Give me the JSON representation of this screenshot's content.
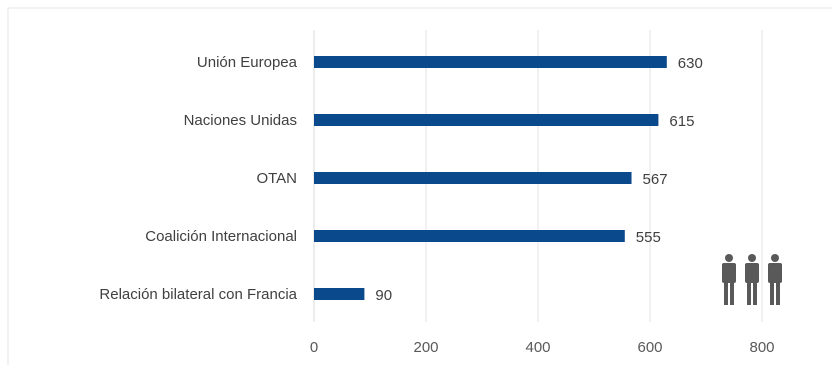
{
  "chart_data": {
    "type": "bar",
    "orientation": "horizontal",
    "categories": [
      "Unión Europea",
      "Naciones Unidas",
      "OTAN",
      "Coalición Internacional",
      "Relación bilateral con Francia"
    ],
    "values": [
      630,
      615,
      567,
      555,
      90
    ],
    "data_labels": [
      "630",
      "615",
      "567",
      "555",
      "90"
    ],
    "x_ticks": [
      "0",
      "200",
      "400",
      "600",
      "800"
    ],
    "xlim": [
      0,
      800
    ],
    "title": "",
    "xlabel": "",
    "ylabel": "",
    "grid": true,
    "legend": "none",
    "bar_color": "#0a4a8c",
    "grid_color": "#e3e3e3",
    "decoration_icon": "people-icon"
  }
}
